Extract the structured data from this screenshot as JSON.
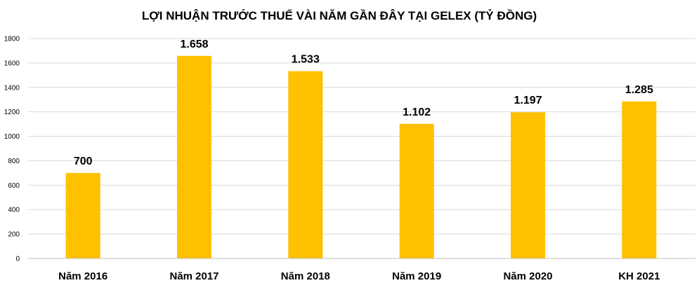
{
  "chart_data": {
    "type": "bar",
    "title": "LỢI NHUẬN TRƯỚC THUẾ VÀI NĂM GẦN ĐÂY TẠI GELEX (TỶ ĐỒNG)",
    "xlabel": "",
    "ylabel": "",
    "categories": [
      "Năm 2016",
      "Năm 2017",
      "Năm 2018",
      "Năm 2019",
      "Năm 2020",
      "KH 2021"
    ],
    "values": [
      700,
      1658,
      1533,
      1102,
      1197,
      1285
    ],
    "value_labels": [
      "700",
      "1.658",
      "1.533",
      "1.102",
      "1.197",
      "1.285"
    ],
    "ylim": [
      0,
      1800
    ],
    "yticks": [
      0,
      200,
      400,
      600,
      800,
      1000,
      1200,
      1400,
      1600,
      1800
    ],
    "grid": true,
    "legend": "none",
    "bar_color": "#FFC000"
  }
}
